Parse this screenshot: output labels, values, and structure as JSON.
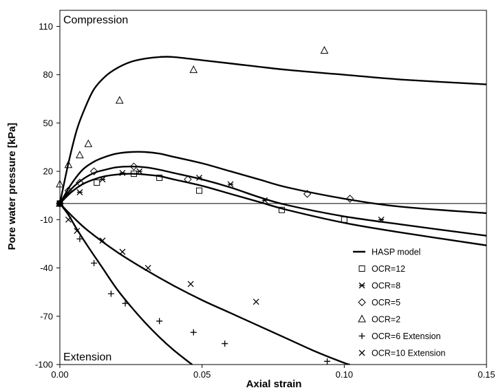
{
  "chart_data": {
    "type": "scatter",
    "title": "",
    "xlabel": "Axial strain",
    "ylabel": "Pore water pressure  [kPa]",
    "xlim": [
      0,
      0.15
    ],
    "ylim": [
      -100,
      120
    ],
    "x_ticks": [
      "0.00",
      "0.05",
      "0.10",
      "0.15"
    ],
    "y_ticks": [
      "110",
      "80",
      "50",
      "20",
      "-10",
      "-40",
      "-70",
      "-100"
    ],
    "x_tick_values": [
      0,
      0.05,
      0.1,
      0.15
    ],
    "y_tick_values": [
      110,
      80,
      50,
      20,
      -10,
      -40,
      -70,
      -100
    ],
    "grid": false,
    "legend_position": "bottom-right",
    "annotations": [
      "Compression",
      "Extension"
    ],
    "series": [
      {
        "name": "HASP model",
        "marker": "line",
        "curves": [
          [
            [
              0,
              0
            ],
            [
              0.003,
              25
            ],
            [
              0.006,
              46
            ],
            [
              0.009,
              60
            ],
            [
              0.012,
              71
            ],
            [
              0.016,
              79
            ],
            [
              0.02,
              84
            ],
            [
              0.025,
              88
            ],
            [
              0.03,
              90
            ],
            [
              0.035,
              91
            ],
            [
              0.04,
              91
            ],
            [
              0.05,
              89
            ],
            [
              0.06,
              87
            ],
            [
              0.08,
              83
            ],
            [
              0.1,
              80
            ],
            [
              0.12,
              77
            ],
            [
              0.15,
              74
            ]
          ],
          [
            [
              0,
              0
            ],
            [
              0.004,
              12
            ],
            [
              0.008,
              21
            ],
            [
              0.012,
              26
            ],
            [
              0.016,
              29
            ],
            [
              0.02,
              31
            ],
            [
              0.025,
              32
            ],
            [
              0.03,
              32
            ],
            [
              0.035,
              31
            ],
            [
              0.04,
              29
            ],
            [
              0.05,
              25
            ],
            [
              0.06,
              20
            ],
            [
              0.07,
              15
            ],
            [
              0.08,
              10
            ],
            [
              0.1,
              3
            ],
            [
              0.12,
              -2
            ],
            [
              0.15,
              -6
            ]
          ],
          [
            [
              0,
              0
            ],
            [
              0.004,
              9
            ],
            [
              0.008,
              15
            ],
            [
              0.012,
              19
            ],
            [
              0.016,
              21
            ],
            [
              0.02,
              22.5
            ],
            [
              0.025,
              23
            ],
            [
              0.03,
              22.5
            ],
            [
              0.035,
              21
            ],
            [
              0.04,
              19
            ],
            [
              0.05,
              15
            ],
            [
              0.06,
              10
            ],
            [
              0.07,
              4
            ],
            [
              0.08,
              -1
            ],
            [
              0.1,
              -8
            ],
            [
              0.12,
              -13
            ],
            [
              0.15,
              -20
            ]
          ],
          [
            [
              0,
              0
            ],
            [
              0.004,
              7
            ],
            [
              0.008,
              12
            ],
            [
              0.012,
              15
            ],
            [
              0.016,
              17
            ],
            [
              0.02,
              18
            ],
            [
              0.025,
              18.5
            ],
            [
              0.03,
              18
            ],
            [
              0.035,
              17
            ],
            [
              0.04,
              15
            ],
            [
              0.05,
              11
            ],
            [
              0.06,
              6
            ],
            [
              0.07,
              1
            ],
            [
              0.08,
              -4
            ],
            [
              0.1,
              -12
            ],
            [
              0.12,
              -18
            ],
            [
              0.15,
              -26
            ]
          ],
          [
            [
              0,
              0
            ],
            [
              0.005,
              -9
            ],
            [
              0.01,
              -17
            ],
            [
              0.02,
              -30
            ],
            [
              0.03,
              -41
            ],
            [
              0.04,
              -51
            ],
            [
              0.05,
              -60
            ],
            [
              0.06,
              -68
            ],
            [
              0.07,
              -76
            ],
            [
              0.08,
              -84
            ],
            [
              0.09,
              -92
            ],
            [
              0.1,
              -99
            ],
            [
              0.102,
              -100
            ]
          ],
          [
            [
              0,
              0
            ],
            [
              0.003,
              -7
            ],
            [
              0.006,
              -16
            ],
            [
              0.01,
              -27
            ],
            [
              0.015,
              -40
            ],
            [
              0.02,
              -53
            ],
            [
              0.025,
              -64
            ],
            [
              0.03,
              -74
            ],
            [
              0.035,
              -83
            ],
            [
              0.04,
              -91
            ],
            [
              0.045,
              -98
            ],
            [
              0.0465,
              -100
            ]
          ]
        ]
      },
      {
        "name": "OCR=12",
        "marker": "square",
        "points": [
          [
            0.0,
            0.0
          ],
          [
            0.013,
            13
          ],
          [
            0.026,
            18.5
          ],
          [
            0.035,
            16
          ],
          [
            0.049,
            8
          ],
          [
            0.078,
            -4
          ],
          [
            0.1,
            -10
          ]
        ]
      },
      {
        "name": "OCR=8",
        "marker": "asterisk",
        "points": [
          [
            0.0,
            0.0
          ],
          [
            0.007,
            7
          ],
          [
            0.015,
            15
          ],
          [
            0.022,
            19
          ],
          [
            0.028,
            20
          ],
          [
            0.049,
            16
          ],
          [
            0.06,
            12
          ],
          [
            0.072,
            2
          ],
          [
            0.113,
            -10
          ]
        ]
      },
      {
        "name": "OCR=5",
        "marker": "diamond",
        "points": [
          [
            0.0,
            0.0
          ],
          [
            0.003,
            8
          ],
          [
            0.007,
            13
          ],
          [
            0.012,
            20
          ],
          [
            0.026,
            23
          ],
          [
            0.045,
            15
          ],
          [
            0.087,
            6
          ],
          [
            0.102,
            3
          ]
        ]
      },
      {
        "name": "OCR=2",
        "marker": "triangle",
        "points": [
          [
            0.0,
            0.0
          ],
          [
            0.0,
            12
          ],
          [
            0.003,
            24
          ],
          [
            0.007,
            30
          ],
          [
            0.01,
            37
          ],
          [
            0.021,
            64
          ],
          [
            0.047,
            83
          ],
          [
            0.093,
            95
          ]
        ]
      },
      {
        "name": "OCR=6 Extension",
        "marker": "plus",
        "points": [
          [
            0.0,
            0.0
          ],
          [
            0.007,
            -22
          ],
          [
            0.012,
            -37
          ],
          [
            0.018,
            -56
          ],
          [
            0.023,
            -62
          ],
          [
            0.035,
            -73
          ],
          [
            0.047,
            -80
          ],
          [
            0.058,
            -87
          ],
          [
            0.094,
            -98
          ]
        ]
      },
      {
        "name": "OCR=10 Extension",
        "marker": "cross",
        "points": [
          [
            0.0,
            0.0
          ],
          [
            0.003,
            -10
          ],
          [
            0.006,
            -17
          ],
          [
            0.015,
            -23
          ],
          [
            0.022,
            -30
          ],
          [
            0.031,
            -40
          ],
          [
            0.046,
            -50
          ],
          [
            0.069,
            -61
          ]
        ]
      }
    ]
  }
}
